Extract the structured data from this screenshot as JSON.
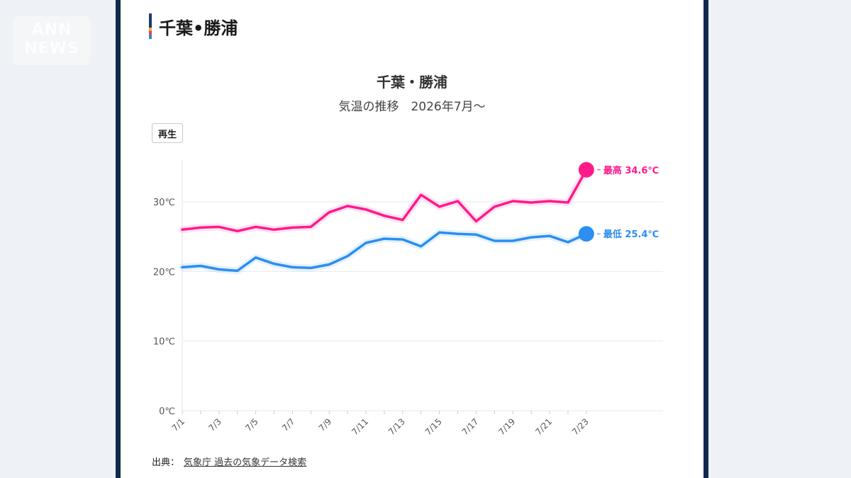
{
  "watermark": "ANN NEWS",
  "section": {
    "title": "千葉•勝浦"
  },
  "chart": {
    "title": "千葉・勝浦",
    "subtitle": "気温の推移　2026年7月～",
    "play_label": "再生"
  },
  "source": {
    "label": "出典：",
    "link_text": "気象庁 過去の気象データ検索"
  },
  "colors": {
    "high": "#ff1a8c",
    "low": "#2b8ef0",
    "frame": "#102a4c"
  },
  "chart_data": {
    "type": "line",
    "title": "千葉・勝浦",
    "subtitle": "気温の推移　2026年7月～",
    "x": [
      "7/1",
      "7/2",
      "7/3",
      "7/4",
      "7/5",
      "7/6",
      "7/7",
      "7/8",
      "7/9",
      "7/10",
      "7/11",
      "7/12",
      "7/13",
      "7/14",
      "7/15",
      "7/16",
      "7/17",
      "7/18",
      "7/19",
      "7/20",
      "7/21",
      "7/22",
      "7/23"
    ],
    "x_tick_labels": [
      "7/1",
      "7/3",
      "7/5",
      "7/7",
      "7/9",
      "7/11",
      "7/13",
      "7/15",
      "7/17",
      "7/19",
      "7/21",
      "7/23"
    ],
    "y_ticks": [
      0,
      10,
      20,
      30
    ],
    "y_tick_labels": [
      "0℃",
      "10℃",
      "20℃",
      "30℃"
    ],
    "ylim": [
      0,
      36
    ],
    "grid": true,
    "series": [
      {
        "name": "最高",
        "end_label": "最高 34.6℃",
        "color": "#ff1a8c",
        "values": [
          26.0,
          26.3,
          26.4,
          25.8,
          26.4,
          26.0,
          26.3,
          26.4,
          28.5,
          29.4,
          28.9,
          28.0,
          27.4,
          31.0,
          29.3,
          30.1,
          27.2,
          29.3,
          30.1,
          29.9,
          30.1,
          29.9,
          34.6
        ]
      },
      {
        "name": "最低",
        "end_label": "最低 25.4℃",
        "color": "#2b8ef0",
        "values": [
          20.6,
          20.8,
          20.3,
          20.1,
          22.0,
          21.1,
          20.6,
          20.5,
          21.0,
          22.2,
          24.1,
          24.7,
          24.6,
          23.6,
          25.6,
          25.4,
          25.3,
          24.4,
          24.4,
          24.9,
          25.1,
          24.2,
          25.4
        ]
      }
    ]
  }
}
